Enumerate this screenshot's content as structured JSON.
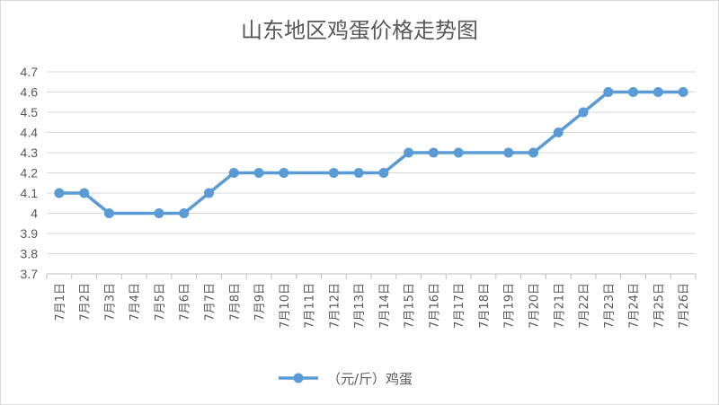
{
  "chart_data": {
    "type": "line",
    "title": "山东地区鸡蛋价格走势图",
    "xlabel": "",
    "ylabel": "",
    "ylim": [
      3.7,
      4.7
    ],
    "yticks": [
      "4.7",
      "4.6",
      "4.5",
      "4.4",
      "4.3",
      "4.2",
      "4.1",
      "4",
      "3.9",
      "3.8",
      "3.7"
    ],
    "grid": true,
    "legend_position": "bottom",
    "categories": [
      "7月1日",
      "7月2日",
      "7月3日",
      "7月4日",
      "7月5日",
      "7月6日",
      "7月7日",
      "7月8日",
      "7月9日",
      "7月10日",
      "7月11日",
      "7月12日",
      "7月13日",
      "7月14日",
      "7月15日",
      "7月16日",
      "7月17日",
      "7月18日",
      "7月19日",
      "7月20日",
      "7月21日",
      "7月22日",
      "7月23日",
      "7月24日",
      "7月25日",
      "7月26日"
    ],
    "series": [
      {
        "name": "（元/斤）鸡蛋",
        "color": "#5b9bd5",
        "values": [
          4.1,
          4.1,
          4.0,
          null,
          4.0,
          4.0,
          4.1,
          4.2,
          4.2,
          4.2,
          null,
          4.2,
          4.2,
          4.2,
          4.3,
          4.3,
          4.3,
          null,
          4.3,
          4.3,
          4.4,
          4.5,
          4.6,
          4.6,
          4.6,
          4.6
        ]
      }
    ]
  }
}
